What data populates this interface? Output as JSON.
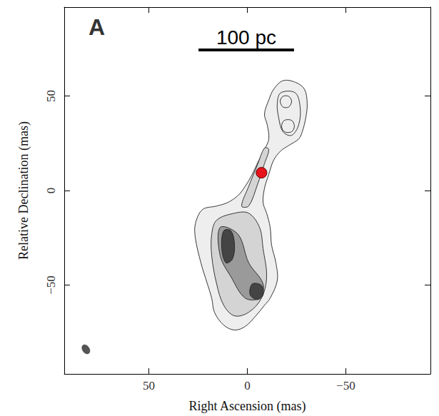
{
  "chart_data": {
    "type": "contour",
    "panel_label": "A",
    "xlabel": "Right Ascension (mas)",
    "ylabel": "Relative Declination (mas)",
    "xlim": [
      93,
      -93
    ],
    "ylim": [
      -97,
      97
    ],
    "xticks": [
      50,
      0,
      {
        "value": -50,
        "label": "−50"
      }
    ],
    "yticks": [
      {
        "value": -50,
        "label": "−50"
      },
      0,
      50
    ],
    "grid": false,
    "contour_color": "#222222",
    "scale_bar": {
      "label": "100 pc",
      "length": 48.5
    },
    "marker_point": {
      "x": -7.2,
      "y": 9.4,
      "color": "#e8141c",
      "marker": "circle"
    },
    "beam": {
      "x": 82,
      "y": -84,
      "width": 3.4,
      "height": 5.2,
      "color": "#555555"
    },
    "contours": [
      {
        "color": "#eeeeee",
        "points": [
          [
            -18.1,
            58.1
          ],
          [
            -24.3,
            57.3
          ],
          [
            -29.0,
            53.6
          ],
          [
            -30.4,
            46.1
          ],
          [
            -29.7,
            38.6
          ],
          [
            -27.9,
            31.1
          ],
          [
            -26.1,
            27.3
          ],
          [
            -20.7,
            23.6
          ],
          [
            -17.0,
            21.0
          ],
          [
            -13.4,
            16.1
          ],
          [
            -10.9,
            8.6
          ],
          [
            -8.7,
            1.1
          ],
          [
            -8.0,
            -6.4
          ],
          [
            -9.8,
            -12.0
          ],
          [
            -11.6,
            -19.5
          ],
          [
            -12.3,
            -28.8
          ],
          [
            -14.5,
            -38.2
          ],
          [
            -15.2,
            -47.6
          ],
          [
            -11.6,
            -56.9
          ],
          [
            -8.7,
            -60.7
          ],
          [
            -4.3,
            -66.3
          ],
          [
            1.1,
            -71.9
          ],
          [
            6.5,
            -73.8
          ],
          [
            12.0,
            -71.2
          ],
          [
            16.7,
            -64.4
          ],
          [
            18.1,
            -56.9
          ],
          [
            20.3,
            -49.4
          ],
          [
            23.6,
            -38.2
          ],
          [
            26.4,
            -25.1
          ],
          [
            26.4,
            -17.6
          ],
          [
            22.8,
            -10.1
          ],
          [
            15.6,
            -8.2
          ],
          [
            10.1,
            -6.4
          ],
          [
            4.7,
            -2.6
          ],
          [
            1.1,
            2.2
          ],
          [
            -2.5,
            8.6
          ],
          [
            -5.4,
            15.0
          ],
          [
            -8.7,
            21.7
          ],
          [
            -10.9,
            27.3
          ],
          [
            -10.1,
            34.8
          ],
          [
            -8.7,
            40.4
          ],
          [
            -10.9,
            47.9
          ],
          [
            -13.4,
            53.6
          ]
        ]
      },
      {
        "color": "#d4d4d4",
        "points": [
          [
            15.6,
            -15.7
          ],
          [
            6.5,
            -12.0
          ],
          [
            -0.7,
            -12.0
          ],
          [
            -6.2,
            -19.5
          ],
          [
            -8.0,
            -30.7
          ],
          [
            -9.8,
            -45.7
          ],
          [
            -7.2,
            -56.9
          ],
          [
            -0.7,
            -64.4
          ],
          [
            6.5,
            -66.3
          ],
          [
            12.0,
            -60.7
          ],
          [
            15.6,
            -49.4
          ],
          [
            18.1,
            -34.5
          ],
          [
            18.1,
            -23.2
          ]
        ]
      },
      {
        "color": "#d4d4d4",
        "points": [
          [
            -0.7,
            -8.2
          ],
          [
            -5.1,
            3.0
          ],
          [
            -8.7,
            14.2
          ],
          [
            -10.9,
            21.7
          ],
          [
            -8.7,
            22.5
          ],
          [
            -5.1,
            13.5
          ],
          [
            -0.7,
            2.2
          ],
          [
            2.9,
            -8.2
          ]
        ]
      },
      {
        "color": null,
        "points": [
          [
            -17.0,
            51.7
          ],
          [
            -24.3,
            51.7
          ],
          [
            -26.8,
            44.2
          ],
          [
            -26.1,
            34.8
          ],
          [
            -22.5,
            29.2
          ],
          [
            -18.1,
            31.1
          ],
          [
            -15.9,
            38.6
          ],
          [
            -15.2,
            46.1
          ]
        ]
      },
      {
        "color": null,
        "points": [
          [
            -16.7,
            47.2
          ],
          [
            -18.1,
            49.8
          ],
          [
            -21.0,
            49.8
          ],
          [
            -22.5,
            47.2
          ],
          [
            -21.0,
            44.2
          ],
          [
            -18.1,
            44.2
          ]
        ]
      },
      {
        "color": null,
        "points": [
          [
            -17.4,
            34.1
          ],
          [
            -18.8,
            37.1
          ],
          [
            -22.5,
            37.1
          ],
          [
            -23.9,
            34.1
          ],
          [
            -22.5,
            31.1
          ],
          [
            -18.8,
            31.1
          ]
        ]
      },
      {
        "color": "#9a9a9a",
        "points": [
          [
            13.8,
            -19.5
          ],
          [
            4.7,
            -23.2
          ],
          [
            -0.7,
            -38.2
          ],
          [
            -8.0,
            -49.4
          ],
          [
            -6.2,
            -56.9
          ],
          [
            1.1,
            -56.9
          ],
          [
            8.3,
            -45.7
          ],
          [
            13.8,
            -34.5
          ]
        ]
      },
      {
        "color": "#444444",
        "points": [
          [
            12.0,
            -21.3
          ],
          [
            8.3,
            -21.3
          ],
          [
            6.5,
            -28.8
          ],
          [
            7.6,
            -36.3
          ],
          [
            10.9,
            -38.2
          ],
          [
            13.0,
            -30.7
          ]
        ]
      },
      {
        "color": "#444444",
        "points": [
          [
            -2.5,
            -49.4
          ],
          [
            -7.2,
            -50.2
          ],
          [
            -8.0,
            -55.1
          ],
          [
            -5.1,
            -57.7
          ],
          [
            -1.4,
            -55.1
          ]
        ]
      }
    ]
  }
}
